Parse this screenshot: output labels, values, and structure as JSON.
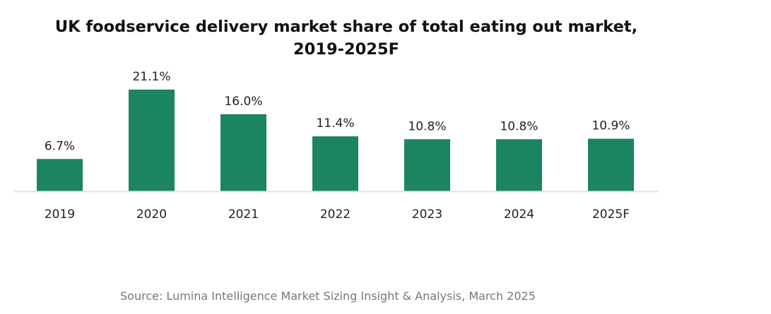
{
  "chart_data": {
    "type": "bar",
    "title": [
      "UK foodservice delivery market share of total eating out market,",
      "2019-2025F"
    ],
    "categories": [
      "2019",
      "2020",
      "2021",
      "2022",
      "2023",
      "2024",
      "2025F"
    ],
    "values": [
      6.7,
      21.1,
      16.0,
      11.4,
      10.8,
      10.8,
      10.9
    ],
    "data_labels": [
      "6.7%",
      "21.1%",
      "16.0%",
      "11.4%",
      "10.8%",
      "10.8%",
      "10.9%"
    ],
    "xlabel": "",
    "ylabel": "",
    "ylim": [
      0,
      21.1
    ],
    "grid": false,
    "bar_color": "#1b8560"
  },
  "source": "Source: Lumina Intelligence Market Sizing Insight & Analysis,  March 2025"
}
